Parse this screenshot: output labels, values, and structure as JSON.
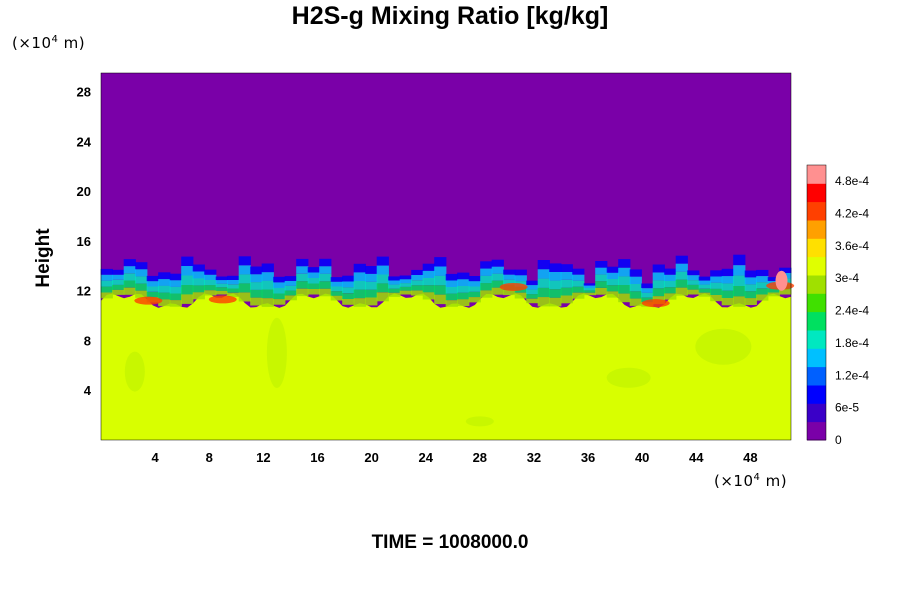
{
  "chart_data": {
    "type": "heatmap",
    "title": "H2S-g Mixing Ratio [kg/kg]",
    "ylabel": "Height",
    "x_unit": [
      "(×10",
      "4",
      " m)"
    ],
    "y_unit": [
      "(×10",
      "4",
      " m)"
    ],
    "time_label": "TIME = 1008000.0",
    "x_ticks": [
      4,
      8,
      12,
      16,
      20,
      24,
      28,
      32,
      36,
      40,
      44,
      48
    ],
    "y_ticks": [
      4,
      8,
      12,
      16,
      20,
      24,
      28
    ],
    "xlim": [
      0,
      51
    ],
    "ylim": [
      0,
      29.5
    ],
    "colorbar_ticks": [
      "0",
      "6e-5",
      "1.2e-4",
      "1.8e-4",
      "2.4e-4",
      "3e-4",
      "3.6e-4",
      "4.2e-4",
      "4.8e-4"
    ],
    "colorbar_range": [
      0,
      0.00051
    ],
    "colormap": [
      "#7a00a8",
      "#3a00c8",
      "#0000ff",
      "#0060ff",
      "#00c0ff",
      "#00e8c0",
      "#00e060",
      "#40e000",
      "#a0e000",
      "#e0ff00",
      "#ffe000",
      "#ffa000",
      "#ff4000",
      "#ff0000",
      "#ff9090"
    ],
    "regions": {
      "upper_value": 0,
      "lower_value": 0.000345,
      "interface_height_range": [
        10.5,
        15
      ]
    }
  }
}
